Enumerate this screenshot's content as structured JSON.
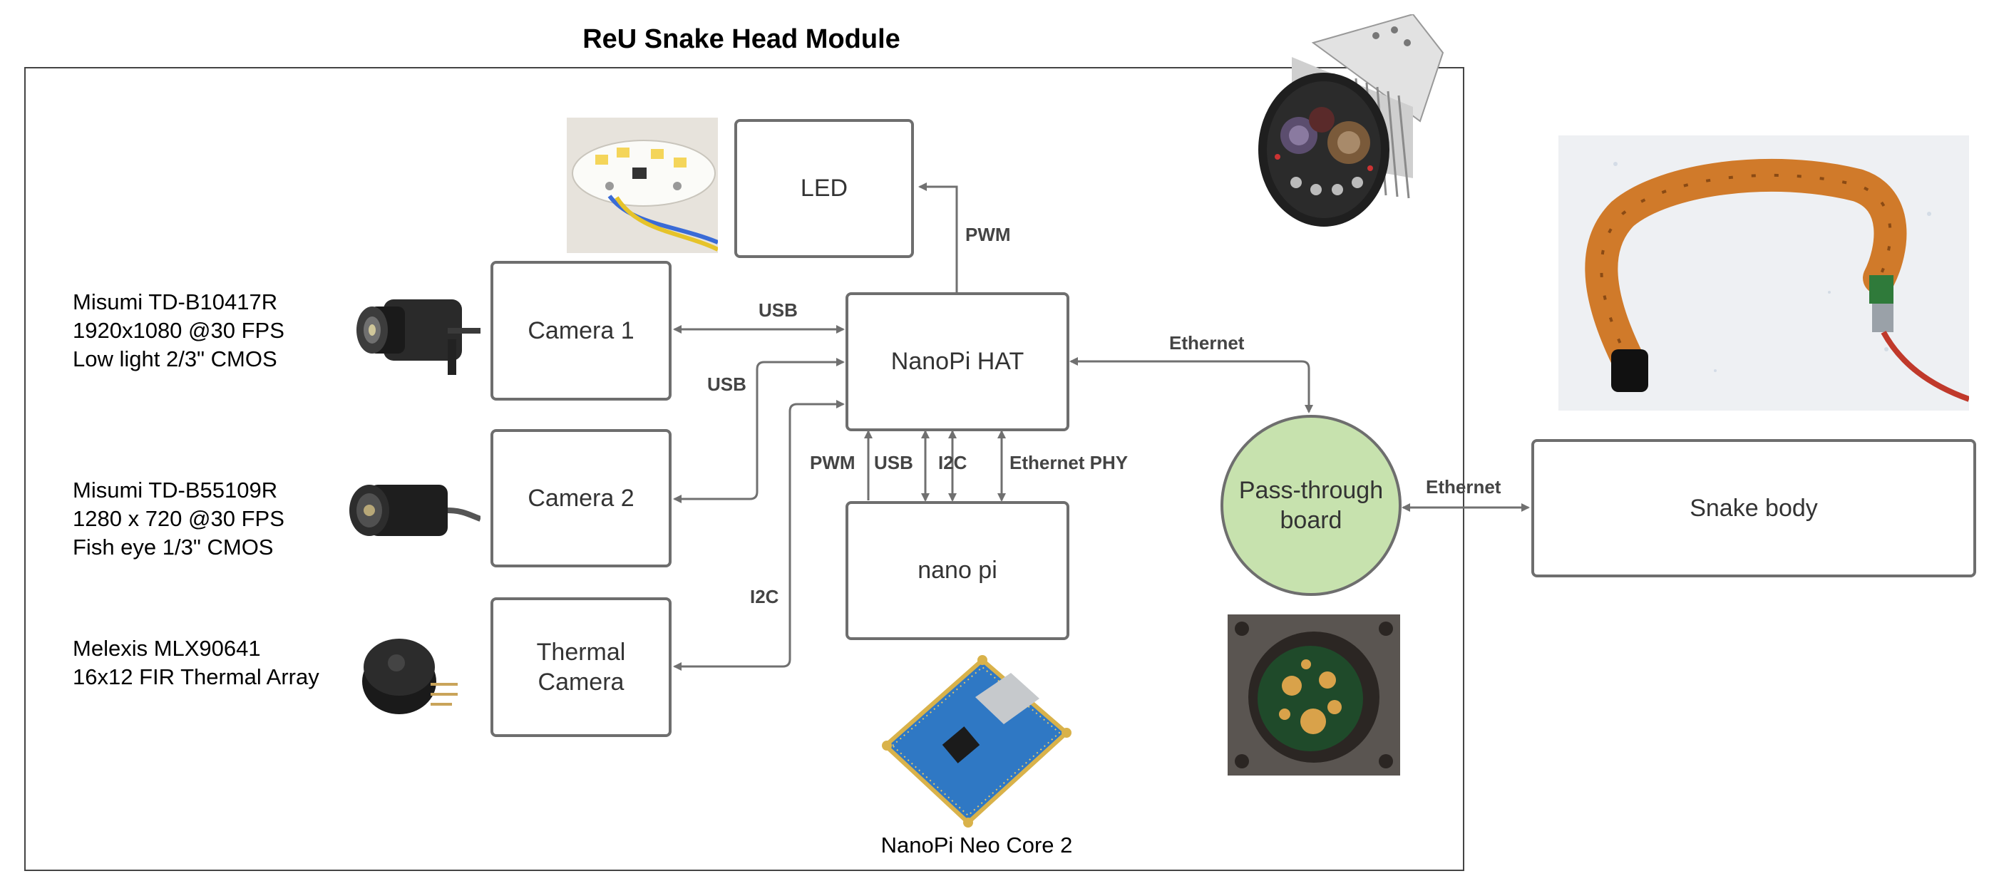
{
  "title": "ReU Snake Head Module",
  "blocks": {
    "led": "LED",
    "camera1": "Camera 1",
    "camera2": "Camera 2",
    "thermal_line1": "Thermal",
    "thermal_line2": "Camera",
    "nanopi_hat": "NanoPi HAT",
    "nano_pi": "nano pi",
    "pass_line1": "Pass-through",
    "pass_line2": "board",
    "snake_body": "Snake body"
  },
  "links": {
    "pwm_led": "PWM",
    "usb_cam1": "USB",
    "usb_cam2": "USB",
    "i2c_thermal": "I2C",
    "pwm_nano": "PWM",
    "usb_nano": "USB",
    "i2c_nano": "I2C",
    "eth_phy": "Ethernet PHY",
    "eth_hat": "Ethernet",
    "eth_body": "Ethernet"
  },
  "sensors": {
    "cam1": [
      "Misumi TD-B10417R",
      "1920x1080 @30 FPS",
      "Low light 2/3\" CMOS"
    ],
    "cam2": [
      "Misumi TD-B55109R",
      "1280 x 720 @30 FPS",
      "Fish eye 1/3\" CMOS"
    ],
    "thermal": [
      "Melexis MLX90641",
      "16x12 FIR Thermal Array"
    ]
  },
  "captions": {
    "nanopi_board": "NanoPi Neo Core 2"
  },
  "colors": {
    "box_border": "#6e6e6e",
    "pass_fill": "#c7e2ae",
    "wire": "#707070",
    "copper": "#d07a2a"
  }
}
